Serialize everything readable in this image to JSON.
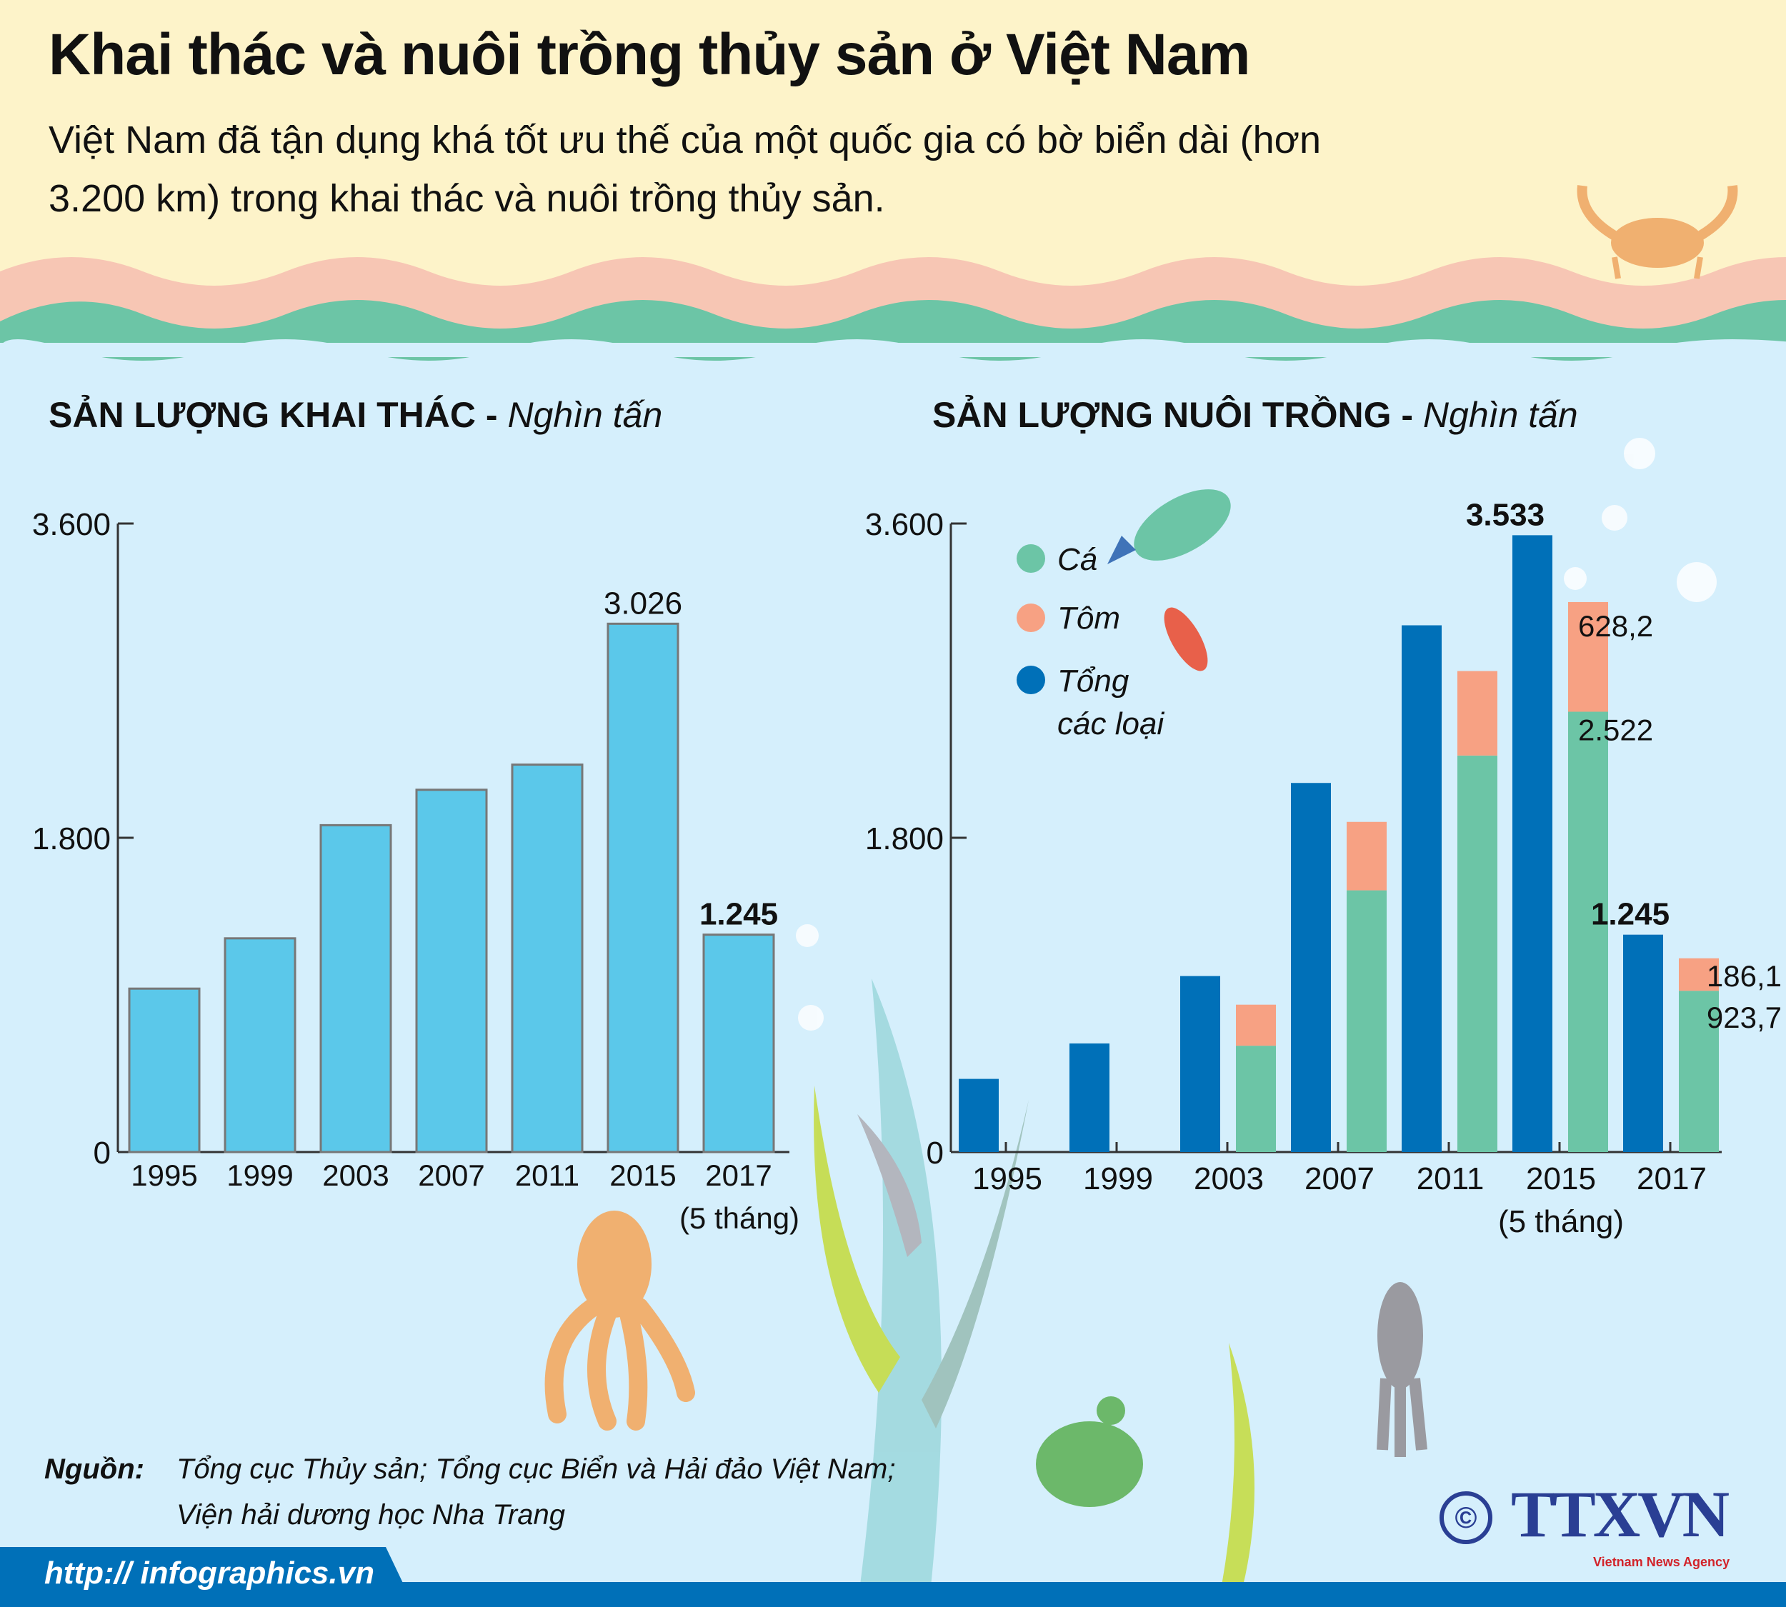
{
  "header": {
    "title": "Khai thác và nuôi trồng thủy sản ở Việt Nam",
    "subtitle": "Việt Nam đã tận dụng khá tốt ưu thế của một quốc gia có bờ biển dài (hơn 3.200 km) trong khai thác và nuôi trồng thủy sản."
  },
  "colors": {
    "header_bg": "#fdf3c9",
    "sea_bg": "#d5effc",
    "light_blue": "#5bc8ea",
    "dark_blue": "#0070b8",
    "green": "#6cc5a6",
    "salmon": "#f7a183",
    "pink_wave": "#f7c6b4"
  },
  "chart_data": [
    {
      "type": "bar",
      "title": "SẢN LƯỢNG KHAI THÁC",
      "unit": "Nghìn tấn",
      "categories": [
        "1995",
        "1999",
        "2003",
        "2007",
        "2011",
        "2015",
        "2017"
      ],
      "category_note": "(5 tháng)",
      "values": [
        936,
        1224,
        1872,
        2075,
        2219,
        3026,
        1245
      ],
      "data_labels": {
        "5": "3.026",
        "6": "1.245"
      },
      "yticks": [
        "0",
        "1.800",
        "3.600"
      ],
      "ytick_values": [
        0,
        1800,
        3600
      ],
      "ylim": [
        0,
        3600
      ]
    },
    {
      "type": "bar",
      "title": "SẢN LƯỢNG NUÔI TRỒNG",
      "unit": "Nghìn tấn",
      "categories": [
        "1995",
        "1999",
        "2003",
        "2007",
        "2011",
        "2015",
        "2017"
      ],
      "category_note": "(5 tháng)",
      "legend": [
        "Cá",
        "Tôm",
        "Tổng",
        "các loại"
      ],
      "legend_position": "top-left",
      "series": [
        {
          "name": "Tổng các loại",
          "values": [
            419,
            622,
            1008,
            2114,
            3017,
            3533,
            1245
          ]
        },
        {
          "name": "Cá",
          "values": [
            null,
            null,
            609,
            1499,
            2271,
            2522,
            923.7
          ]
        },
        {
          "name": "Tôm",
          "values": [
            null,
            null,
            235,
            392,
            484,
            628.2,
            186.1
          ]
        }
      ],
      "data_labels": {
        "total_5": "3.533",
        "total_6": "1.245",
        "tom_5": "628,2",
        "ca_5": "2.522",
        "tom_6": "186,1",
        "ca_6": "923,7"
      },
      "yticks": [
        "0",
        "1.800",
        "3.600"
      ],
      "ytick_values": [
        0,
        1800,
        3600
      ],
      "ylim": [
        0,
        3600
      ]
    }
  ],
  "source": {
    "label": "Nguồn:",
    "line1": "Tổng cục Thủy sản; Tổng cục Biển và Hải đảo Việt Nam;",
    "line2": "Viện hải dương học Nha Trang"
  },
  "footer": {
    "url": "http:// infographics.vn"
  },
  "logo": {
    "copyright": "©",
    "name": "TTXVN",
    "agency": "Vietnam News Agency"
  }
}
